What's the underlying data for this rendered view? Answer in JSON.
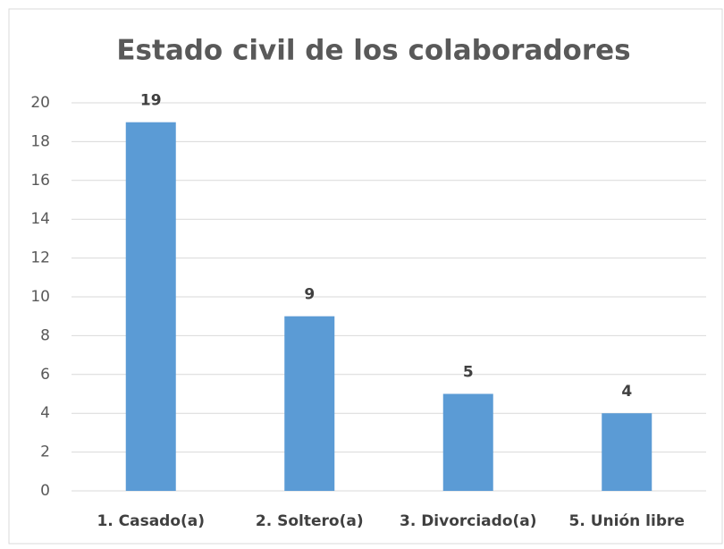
{
  "chart_data": {
    "type": "bar",
    "title": "Estado civil de los colaboradores",
    "categories": [
      "1. Casado(a)",
      "2. Soltero(a)",
      "3. Divorciado(a)",
      "5. Unión libre"
    ],
    "values": [
      19,
      9,
      5,
      4
    ],
    "color": "#5b9bd5",
    "ylim": [
      0,
      20
    ],
    "yticks": [
      0,
      2,
      4,
      6,
      8,
      10,
      12,
      14,
      16,
      18,
      20
    ],
    "grid": true
  }
}
